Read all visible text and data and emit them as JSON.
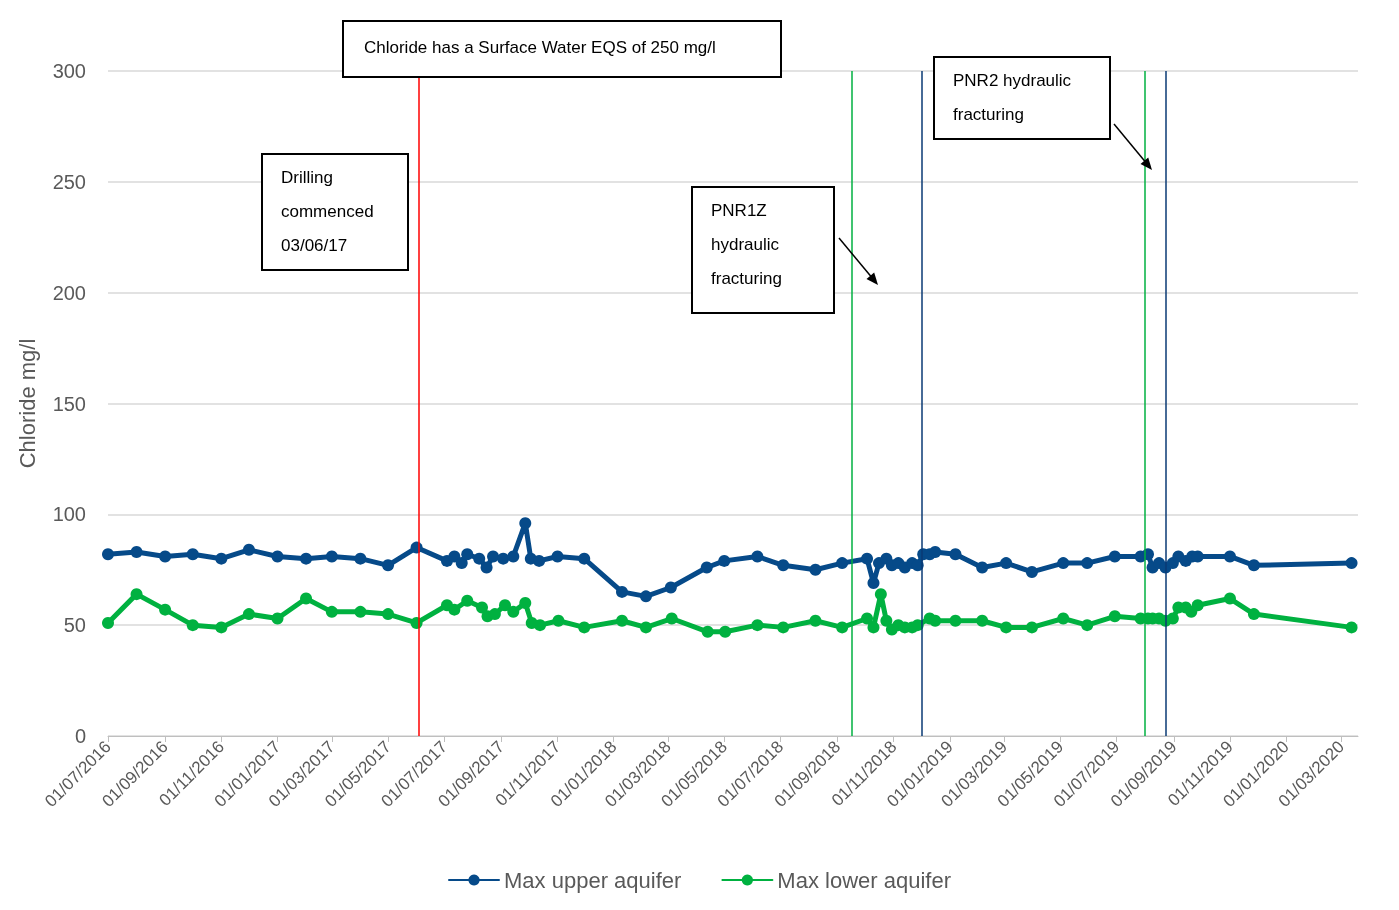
{
  "chart_data": {
    "type": "line",
    "ylabel": "Chloride mg/l",
    "annotations": [
      "Chloride has a Surface Water EQS of 250 mg/l",
      "Drilling commenced 03/06/17",
      "PNR1Z hydraulic fracturing",
      "PNR2 hydraulic fracturing"
    ],
    "xlim": [
      "2016-07-01",
      "2020-03-19"
    ],
    "xticks": [
      {
        "value": "2016-07-01",
        "label": "01/07/2016"
      },
      {
        "value": "2016-09-01",
        "label": "01/09/2016"
      },
      {
        "value": "2016-11-01",
        "label": "01/11/2016"
      },
      {
        "value": "2017-01-01",
        "label": "01/01/2017"
      },
      {
        "value": "2017-03-01",
        "label": "01/03/2017"
      },
      {
        "value": "2017-05-01",
        "label": "01/05/2017"
      },
      {
        "value": "2017-07-01",
        "label": "01/07/2017"
      },
      {
        "value": "2017-09-01",
        "label": "01/09/2017"
      },
      {
        "value": "2017-11-01",
        "label": "01/11/2017"
      },
      {
        "value": "2018-01-01",
        "label": "01/01/2018"
      },
      {
        "value": "2018-03-01",
        "label": "01/03/2018"
      },
      {
        "value": "2018-05-01",
        "label": "01/05/2018"
      },
      {
        "value": "2018-07-01",
        "label": "01/07/2018"
      },
      {
        "value": "2018-09-01",
        "label": "01/09/2018"
      },
      {
        "value": "2018-11-01",
        "label": "01/11/2018"
      },
      {
        "value": "2019-01-01",
        "label": "01/01/2019"
      },
      {
        "value": "2019-03-01",
        "label": "01/03/2019"
      },
      {
        "value": "2019-05-01",
        "label": "01/05/2019"
      },
      {
        "value": "2019-07-01",
        "label": "01/07/2019"
      },
      {
        "value": "2019-09-01",
        "label": "01/09/2019"
      },
      {
        "value": "2019-11-01",
        "label": "01/11/2019"
      },
      {
        "value": "2020-01-01",
        "label": "01/01/2020"
      },
      {
        "value": "2020-03-01",
        "label": "01/03/2020"
      }
    ],
    "ylim": [
      0,
      300
    ],
    "yticks": [
      0,
      50,
      100,
      150,
      200,
      250,
      300
    ],
    "grid": "y",
    "legend": "bottom",
    "marker": "circle",
    "line_style": "solid",
    "ref_lines": [
      {
        "axis": "x",
        "value": "2017-06-03",
        "color": "#ff0000"
      },
      {
        "axis": "x",
        "value": "2018-09-16",
        "color": "#00b140"
      },
      {
        "axis": "x",
        "value": "2018-12-01",
        "color": "#0a3a75"
      },
      {
        "axis": "x",
        "value": "2019-08-01",
        "color": "#00b140"
      },
      {
        "axis": "x",
        "value": "2019-08-23",
        "color": "#0a3a75"
      }
    ],
    "series": [
      {
        "name": "Max upper aquifer",
        "color": "#064a89",
        "x": [
          "2016-07-01",
          "2016-08-01",
          "2016-09-01",
          "2016-10-01",
          "2016-11-01",
          "2016-12-01",
          "2017-01-01",
          "2017-02-01",
          "2017-03-01",
          "2017-04-01",
          "2017-05-01",
          "2017-06-01",
          "2017-07-04",
          "2017-07-12",
          "2017-07-20",
          "2017-07-26",
          "2017-08-08",
          "2017-08-16",
          "2017-08-23",
          "2017-09-03",
          "2017-09-14",
          "2017-09-27",
          "2017-10-03",
          "2017-10-12",
          "2017-11-01",
          "2017-11-30",
          "2018-01-10",
          "2018-02-05",
          "2018-03-04",
          "2018-04-12",
          "2018-05-01",
          "2018-06-06",
          "2018-07-04",
          "2018-08-08",
          "2018-09-06",
          "2018-10-03",
          "2018-10-10",
          "2018-10-16",
          "2018-10-24",
          "2018-10-30",
          "2018-11-06",
          "2018-11-13",
          "2018-11-21",
          "2018-11-27",
          "2018-12-03",
          "2018-12-10",
          "2018-12-16",
          "2019-01-07",
          "2019-02-05",
          "2019-03-03",
          "2019-03-31",
          "2019-05-04",
          "2019-05-30",
          "2019-06-29",
          "2019-07-27",
          "2019-08-04",
          "2019-08-09",
          "2019-08-16",
          "2019-08-23",
          "2019-08-31",
          "2019-09-06",
          "2019-09-14",
          "2019-09-21",
          "2019-09-27",
          "2019-11-01",
          "2019-11-27",
          "2020-03-12"
        ],
        "values": [
          82,
          83,
          81,
          82,
          80,
          84,
          81,
          80,
          81,
          80,
          77,
          85,
          79,
          81,
          78,
          82,
          80,
          76,
          81,
          80,
          81,
          96,
          80,
          79,
          81,
          80,
          65,
          63,
          67,
          76,
          79,
          81,
          77,
          75,
          78,
          80,
          69,
          78,
          80,
          77,
          78,
          76,
          78,
          77,
          82,
          82,
          83,
          82,
          76,
          78,
          74,
          78,
          78,
          81,
          81,
          82,
          76,
          78,
          76,
          78,
          81,
          79,
          81,
          81,
          81,
          77,
          78
        ]
      },
      {
        "name": "Max lower aquifer",
        "color": "#00b140",
        "x": [
          "2016-07-01",
          "2016-08-01",
          "2016-09-01",
          "2016-10-01",
          "2016-11-01",
          "2016-12-01",
          "2017-01-01",
          "2017-02-01",
          "2017-03-01",
          "2017-04-01",
          "2017-05-01",
          "2017-06-01",
          "2017-07-04",
          "2017-07-12",
          "2017-07-26",
          "2017-08-11",
          "2017-08-17",
          "2017-08-25",
          "2017-09-05",
          "2017-09-14",
          "2017-09-27",
          "2017-10-04",
          "2017-10-13",
          "2017-11-02",
          "2017-11-30",
          "2018-01-10",
          "2018-02-05",
          "2018-03-05",
          "2018-04-13",
          "2018-05-02",
          "2018-06-06",
          "2018-07-04",
          "2018-08-08",
          "2018-09-06",
          "2018-10-03",
          "2018-10-10",
          "2018-10-18",
          "2018-10-24",
          "2018-10-30",
          "2018-11-06",
          "2018-11-13",
          "2018-11-21",
          "2018-11-27",
          "2018-12-10",
          "2018-12-16",
          "2019-01-07",
          "2019-02-05",
          "2019-03-03",
          "2019-03-31",
          "2019-05-04",
          "2019-05-30",
          "2019-06-29",
          "2019-07-27",
          "2019-08-04",
          "2019-08-09",
          "2019-08-16",
          "2019-08-23",
          "2019-08-31",
          "2019-09-06",
          "2019-09-14",
          "2019-09-20",
          "2019-09-27",
          "2019-11-01",
          "2019-11-27",
          "2020-03-12"
        ],
        "values": [
          51,
          64,
          57,
          50,
          49,
          55,
          53,
          62,
          56,
          56,
          55,
          51,
          59,
          57,
          61,
          58,
          54,
          55,
          59,
          56,
          60,
          51,
          50,
          52,
          49,
          52,
          49,
          53,
          47,
          47,
          50,
          49,
          52,
          49,
          53,
          49,
          64,
          52,
          48,
          50,
          49,
          49,
          50,
          53,
          52,
          52,
          52,
          49,
          49,
          53,
          50,
          54,
          53,
          53,
          53,
          53,
          52,
          53,
          58,
          58,
          56,
          59,
          62,
          55,
          49
        ]
      }
    ]
  }
}
